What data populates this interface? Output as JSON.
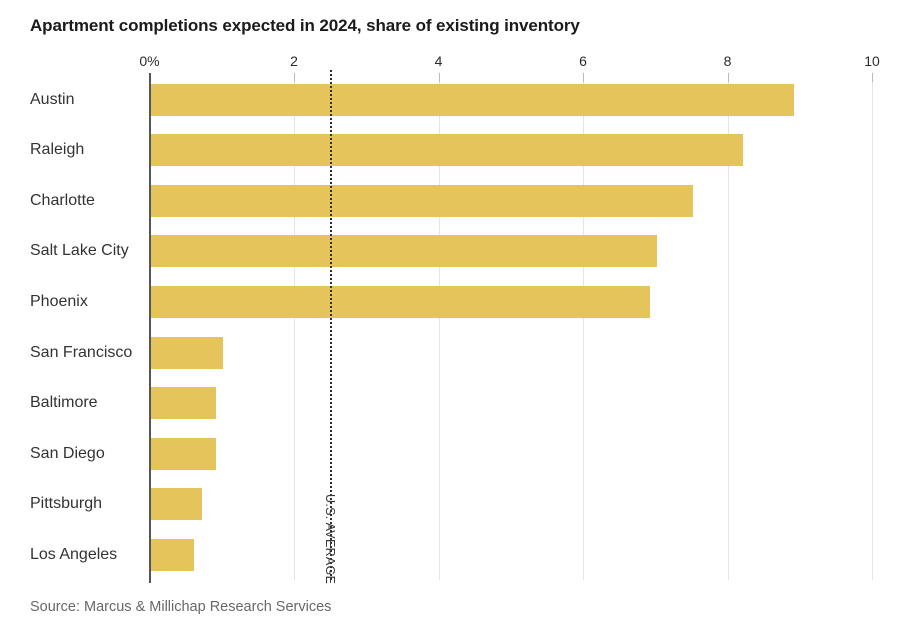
{
  "page": {
    "title": "Apartment completions expected in 2024, share of existing inventory",
    "source": "Source: Marcus & Millichap Research Services"
  },
  "chart_data": {
    "type": "bar",
    "orientation": "horizontal",
    "title": "Apartment completions expected in 2024, share of existing inventory",
    "categories": [
      "Austin",
      "Raleigh",
      "Charlotte",
      "Salt Lake City",
      "Phoenix",
      "San Francisco",
      "Baltimore",
      "San Diego",
      "Pittsburgh",
      "Los Angeles"
    ],
    "values": [
      8.9,
      8.2,
      7.5,
      7.0,
      6.9,
      1.0,
      0.9,
      0.9,
      0.7,
      0.6
    ],
    "unit": "%",
    "xlim": [
      0,
      10
    ],
    "x_ticks": [
      {
        "value": 0,
        "label": "0%"
      },
      {
        "value": 2,
        "label": "2"
      },
      {
        "value": 4,
        "label": "4"
      },
      {
        "value": 6,
        "label": "6"
      },
      {
        "value": 8,
        "label": "8"
      },
      {
        "value": 10,
        "label": "10"
      }
    ],
    "reference_line": {
      "value": 2.5,
      "label": "U.S. AVERAGE"
    },
    "grid": true,
    "legend": "none",
    "bar_color": "#e5c45c",
    "axis_color": "#55565a",
    "gridline_color": "#e4e4e4",
    "reference_line_color": "#2e2e2e",
    "source": "Source: Marcus & Millichap Research Services"
  }
}
